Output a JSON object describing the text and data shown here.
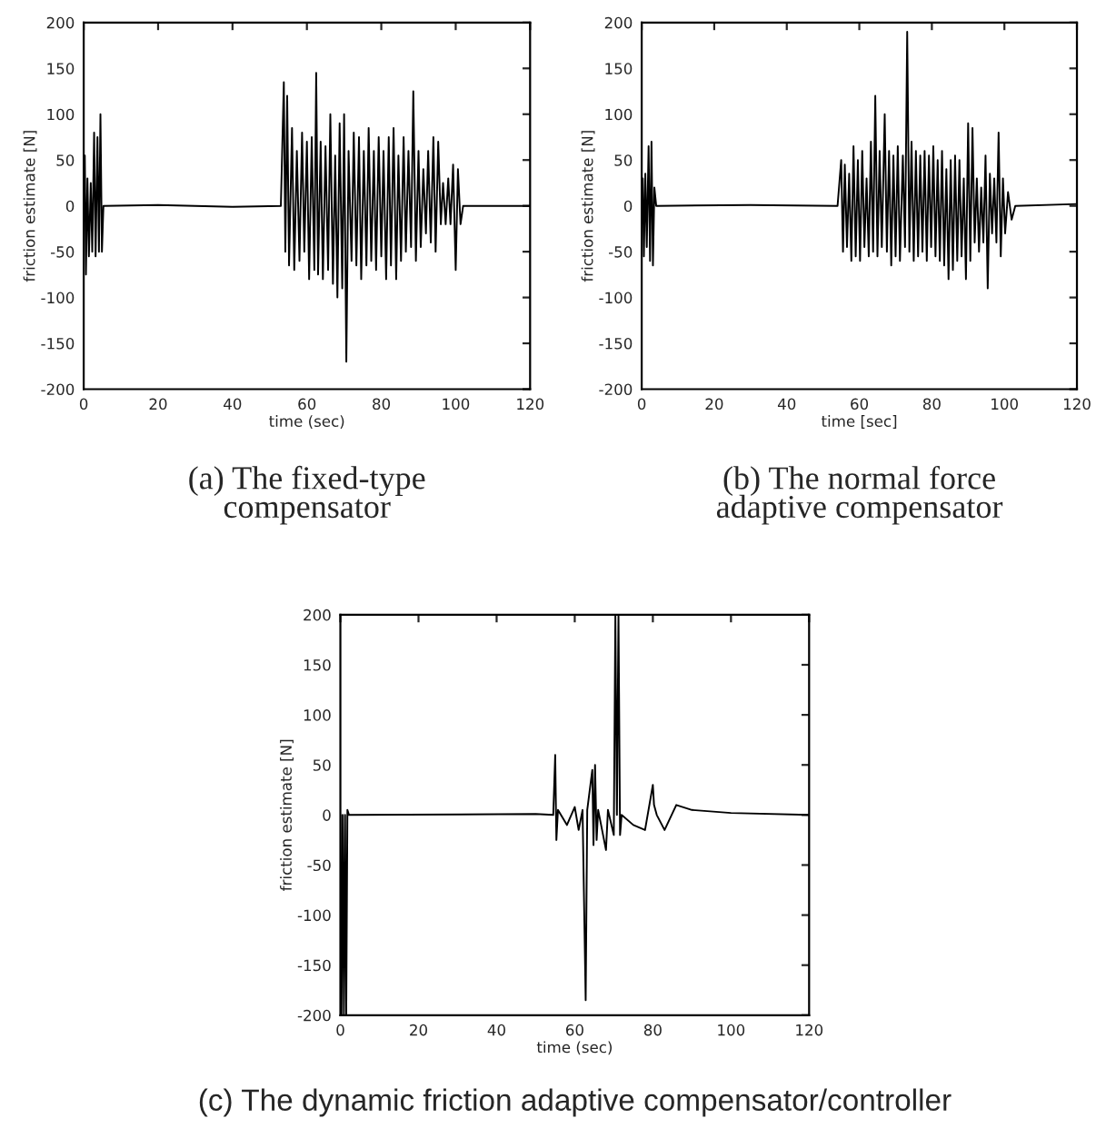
{
  "chart_data": [
    {
      "type": "line",
      "xlabel": "time (sec)",
      "ylabel": "friction estimate [N]",
      "annotations": [
        "(a) The fixed-type\ncompensator"
      ],
      "xlim": [
        0,
        120
      ],
      "ylim": [
        -200,
        200
      ],
      "xticks": [
        0,
        20,
        40,
        60,
        80,
        100,
        120
      ],
      "yticks": [
        -200,
        -150,
        -100,
        -50,
        0,
        50,
        100,
        150,
        200
      ],
      "grid": false,
      "legend": false,
      "series": [
        {
          "color": "#000000",
          "x": [
            0,
            0.3,
            0.6,
            1.0,
            1.4,
            1.9,
            2.3,
            2.8,
            3.2,
            3.7,
            4.1,
            4.5,
            4.9,
            5.3,
            20,
            40,
            53,
            53.8,
            54.2,
            54.7,
            55.2,
            56,
            56.6,
            57.3,
            58,
            58.7,
            59.3,
            60,
            60.6,
            61.3,
            62,
            62.5,
            63,
            63.7,
            64.3,
            65,
            65.7,
            66.3,
            67,
            67.6,
            68.2,
            68.8,
            69.5,
            70,
            70.6,
            71.2,
            72,
            72.6,
            73.3,
            74,
            74.6,
            75.3,
            76,
            76.6,
            77.3,
            78,
            78.6,
            79.3,
            80,
            80.6,
            81.3,
            82,
            82.6,
            83.3,
            84,
            84.6,
            85.3,
            86,
            86.6,
            87.3,
            88,
            88.6,
            89.3,
            90,
            90.6,
            91.3,
            92,
            92.6,
            93.3,
            94,
            94.6,
            95.3,
            96,
            96.6,
            97.3,
            98,
            98.6,
            99.3,
            100,
            100.6,
            101.3,
            102,
            120
          ],
          "values": [
            0,
            55,
            -75,
            30,
            -55,
            25,
            -50,
            80,
            -55,
            75,
            -50,
            100,
            -50,
            0,
            1,
            -1,
            0,
            135,
            -50,
            120,
            -65,
            85,
            -70,
            60,
            -60,
            80,
            -50,
            70,
            -80,
            75,
            -70,
            145,
            -75,
            70,
            -80,
            65,
            -70,
            100,
            -85,
            55,
            -100,
            90,
            -90,
            100,
            -170,
            60,
            -60,
            80,
            -65,
            75,
            -80,
            60,
            -65,
            85,
            -60,
            60,
            -70,
            75,
            -55,
            60,
            -80,
            75,
            -65,
            85,
            -80,
            55,
            -60,
            75,
            -50,
            60,
            -45,
            125,
            -60,
            60,
            -45,
            40,
            -30,
            60,
            -40,
            75,
            -50,
            70,
            -20,
            25,
            -20,
            30,
            -20,
            45,
            -70,
            40,
            -20,
            0,
            0
          ]
        }
      ]
    },
    {
      "type": "line",
      "xlabel": "time [sec]",
      "ylabel": "friction estimate [N]",
      "annotations": [
        "(b) The normal force\nadaptive compensator"
      ],
      "xlim": [
        0,
        120
      ],
      "ylim": [
        -200,
        200
      ],
      "xticks": [
        0,
        20,
        40,
        60,
        80,
        100,
        120
      ],
      "yticks": [
        -200,
        -150,
        -100,
        -50,
        0,
        50,
        100,
        150,
        200
      ],
      "grid": false,
      "legend": false,
      "series": [
        {
          "color": "#000000",
          "x": [
            0,
            0.3,
            0.6,
            1,
            1.4,
            1.9,
            2.3,
            2.7,
            3.1,
            3.5,
            4,
            30,
            54,
            55,
            55.5,
            56,
            56.6,
            57.2,
            57.8,
            58.4,
            59,
            59.6,
            60.2,
            60.8,
            61.4,
            62,
            62.6,
            63.2,
            63.8,
            64.4,
            65,
            65.6,
            66.2,
            67,
            67.6,
            68.2,
            68.8,
            69.4,
            70,
            70.6,
            71.2,
            72,
            72.6,
            73.2,
            73.8,
            74.4,
            75,
            75.6,
            76.2,
            76.8,
            77.4,
            78,
            78.6,
            79.2,
            79.8,
            80.4,
            81,
            81.6,
            82.2,
            82.8,
            83.4,
            84,
            84.6,
            85.2,
            85.8,
            86.4,
            87,
            87.6,
            88.2,
            88.8,
            89.4,
            90,
            90.6,
            91.2,
            91.8,
            92.4,
            93,
            93.6,
            94.2,
            94.8,
            95.4,
            96,
            96.6,
            97.2,
            97.8,
            98.4,
            99,
            99.6,
            100.2,
            101,
            102,
            103,
            120
          ],
          "values": [
            0,
            30,
            -55,
            35,
            -45,
            65,
            -60,
            70,
            -65,
            20,
            0,
            1,
            0,
            50,
            -50,
            45,
            -45,
            35,
            -60,
            65,
            -55,
            50,
            -60,
            60,
            -45,
            30,
            -55,
            70,
            -50,
            120,
            -55,
            60,
            -45,
            100,
            -50,
            60,
            -65,
            55,
            -55,
            65,
            -60,
            55,
            -45,
            190,
            -50,
            70,
            -60,
            60,
            -55,
            55,
            -50,
            60,
            -60,
            55,
            -45,
            65,
            -55,
            50,
            -60,
            60,
            -65,
            40,
            -80,
            50,
            -70,
            55,
            -60,
            50,
            -55,
            30,
            -80,
            90,
            -60,
            85,
            -40,
            30,
            -50,
            20,
            -40,
            55,
            -90,
            35,
            -30,
            30,
            -40,
            80,
            -55,
            30,
            -30,
            15,
            -15,
            0,
            2
          ]
        }
      ]
    },
    {
      "type": "line",
      "xlabel": "time (sec)",
      "ylabel": "friction estimate [N]",
      "annotations": [
        "(c) The dynamic friction adaptive compensator/controller"
      ],
      "xlim": [
        0,
        120
      ],
      "ylim": [
        -200,
        200
      ],
      "xticks": [
        0,
        20,
        40,
        60,
        80,
        100,
        120
      ],
      "yticks": [
        -200,
        -150,
        -100,
        -50,
        0,
        50,
        100,
        150,
        200
      ],
      "grid": false,
      "legend": false,
      "series": [
        {
          "color": "#000000",
          "x": [
            0,
            0.3,
            0.6,
            0.9,
            1.2,
            1.5,
            1.8,
            2.2,
            50,
            54.5,
            55,
            55.3,
            55.7,
            58,
            60,
            61,
            62,
            62.8,
            63.2,
            64.5,
            64.8,
            65.2,
            65.6,
            66,
            68,
            68.5,
            70,
            70.4,
            70.8,
            71.2,
            71.6,
            72,
            75,
            78,
            80,
            80.3,
            81,
            83,
            86,
            90,
            100,
            120
          ],
          "values": [
            0,
            -200,
            0,
            -200,
            0,
            -200,
            5,
            0,
            1,
            0,
            60,
            -25,
            5,
            -10,
            8,
            -15,
            5,
            -185,
            5,
            45,
            -30,
            50,
            -25,
            5,
            -35,
            5,
            -20,
            200,
            0,
            200,
            -20,
            0,
            -10,
            -15,
            30,
            10,
            0,
            -15,
            10,
            5,
            2,
            0
          ]
        }
      ]
    }
  ]
}
